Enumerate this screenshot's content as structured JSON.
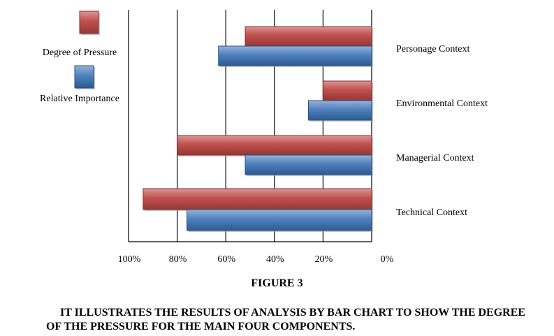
{
  "chart_data": {
    "type": "bar",
    "orientation": "horizontal",
    "x_reversed": true,
    "categories": [
      "Personage Context",
      "Environmental Context",
      "Managerial Context",
      "Technical Context"
    ],
    "series": [
      {
        "name": "Degree of Pressure",
        "color": "#c0504d",
        "values": [
          52,
          20,
          80,
          94
        ]
      },
      {
        "name": "Relative Importance",
        "color": "#4f81bd",
        "values": [
          63,
          26,
          52,
          76
        ]
      }
    ],
    "xlim": [
      0,
      100
    ],
    "xticks": [
      "0%",
      "20%",
      "40%",
      "60%",
      "80%",
      "100%"
    ],
    "legend_position": "left",
    "grid": true
  },
  "figure": {
    "title": "FIGURE 3",
    "caption": "IT ILLUSTRATES THE RESULTS OF ANALYSIS BY BAR CHART TO SHOW THE DEGREE OF THE PRESSURE FOR THE MAIN FOUR COMPONENTS."
  }
}
